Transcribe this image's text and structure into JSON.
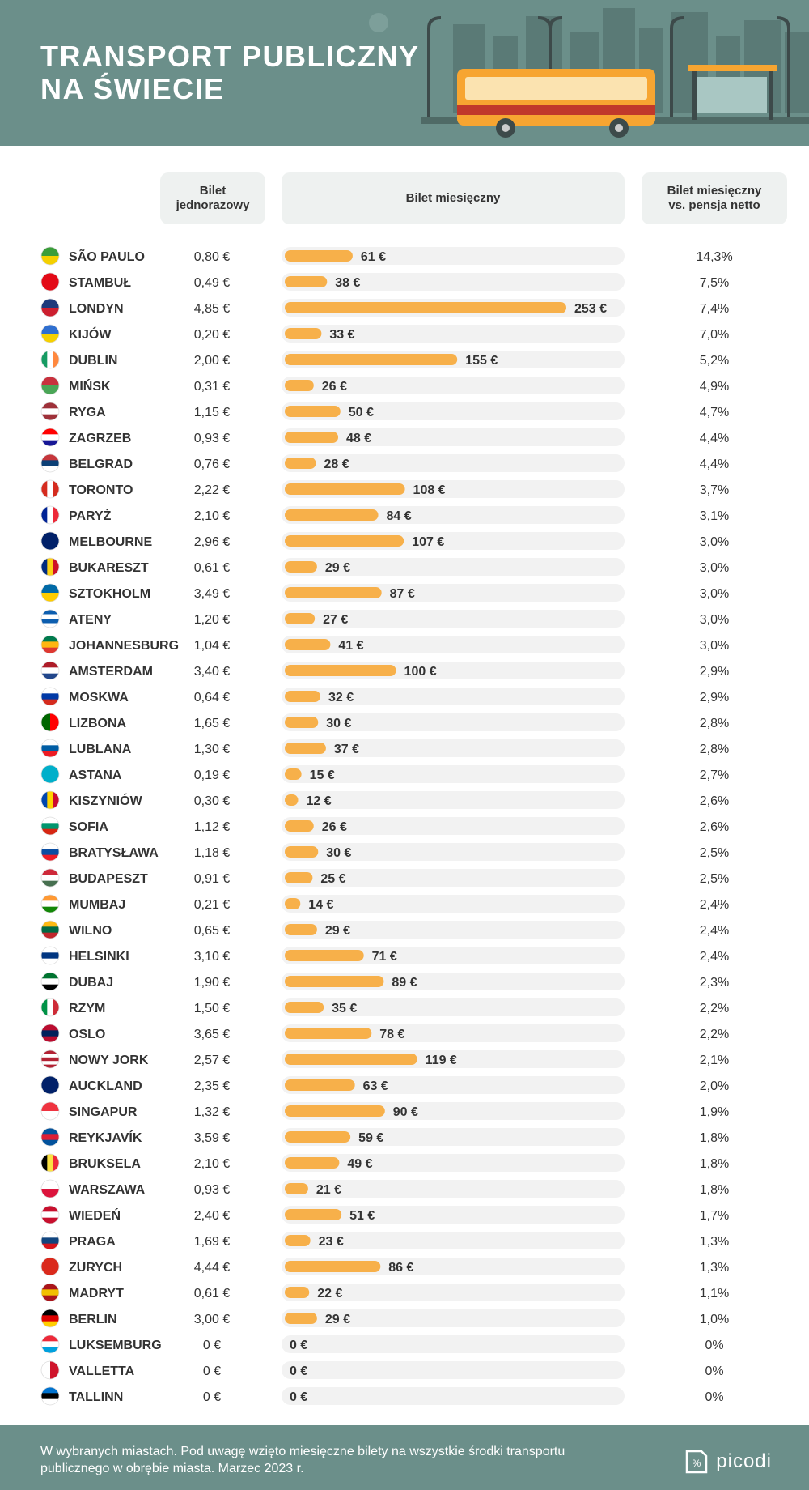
{
  "header": {
    "title_line1": "TRANSPORT PUBLICZNY",
    "title_line2": "NA ŚWIECIE"
  },
  "columns": {
    "single": "Bilet jednorazowy",
    "monthly": "Bilet miesięczny",
    "ratio": "Bilet miesięczny vs. pensja netto"
  },
  "footer": {
    "note": "W wybranych miastach. Pod uwagę wzięto miesięczne bilety na wszystkie środki transportu publicznego w obrębie miasta. Marzec 2023 r.",
    "brand": "picodi"
  },
  "colors": {
    "header_bg": "#6b8f8a",
    "bar": "#f7b04a",
    "track": "#f2f2f2"
  },
  "chart_data": {
    "type": "bar",
    "categories": [
      "SÃO PAULO",
      "STAMBUŁ",
      "LONDYN",
      "KIJÓW",
      "DUBLIN",
      "MIŃSK",
      "RYGA",
      "ZAGRZEB",
      "BELGRAD",
      "TORONTO",
      "PARYŻ",
      "MELBOURNE",
      "BUKARESZT",
      "SZTOKHOLM",
      "ATENY",
      "JOHANNESBURG",
      "AMSTERDAM",
      "MOSKWA",
      "LIZBONA",
      "LUBLANA",
      "ASTANA",
      "KISZYNIÓW",
      "SOFIA",
      "BRATYSŁAWA",
      "BUDAPESZT",
      "MUMBAJ",
      "WILNO",
      "HELSINKI",
      "DUBAJ",
      "RZYM",
      "OSLO",
      "NOWY JORK",
      "AUCKLAND",
      "SINGAPUR",
      "REYKJAVÍK",
      "BRUKSELA",
      "WARSZAWA",
      "WIEDEŃ",
      "PRAGA",
      "ZURYCH",
      "MADRYT",
      "BERLIN",
      "LUKSEMBURG",
      "VALLETTA",
      "TALLINN"
    ],
    "single_labels": [
      "0,80 €",
      "0,49 €",
      "4,85 €",
      "0,20 €",
      "2,00 €",
      "0,31 €",
      "1,15 €",
      "0,93 €",
      "0,76 €",
      "2,22 €",
      "2,10 €",
      "2,96 €",
      "0,61 €",
      "3,49 €",
      "1,20 €",
      "1,04 €",
      "3,40 €",
      "0,64 €",
      "1,65 €",
      "1,30 €",
      "0,19 €",
      "0,30 €",
      "1,12 €",
      "1,18 €",
      "0,91 €",
      "0,21 €",
      "0,65 €",
      "3,10 €",
      "1,90 €",
      "1,50 €",
      "3,65 €",
      "2,57 €",
      "2,35 €",
      "1,32 €",
      "3,59 €",
      "2,10 €",
      "0,93 €",
      "2,40 €",
      "1,69 €",
      "4,44 €",
      "0,61 €",
      "3,00 €",
      "0 €",
      "0 €",
      "0 €"
    ],
    "values": [
      61,
      38,
      253,
      33,
      155,
      26,
      50,
      48,
      28,
      108,
      84,
      107,
      29,
      87,
      27,
      41,
      100,
      32,
      30,
      37,
      15,
      12,
      26,
      30,
      25,
      14,
      29,
      71,
      89,
      35,
      78,
      119,
      63,
      90,
      59,
      49,
      21,
      51,
      23,
      86,
      22,
      29,
      0,
      0,
      0
    ],
    "value_labels": [
      "61 €",
      "38 €",
      "253 €",
      "33 €",
      "155 €",
      "26 €",
      "50 €",
      "48 €",
      "28 €",
      "108 €",
      "84 €",
      "107 €",
      "29 €",
      "87 €",
      "27 €",
      "41 €",
      "100 €",
      "32 €",
      "30 €",
      "37 €",
      "15 €",
      "12 €",
      "26 €",
      "30 €",
      "25 €",
      "14 €",
      "29 €",
      "71 €",
      "89 €",
      "35 €",
      "78 €",
      "119 €",
      "63 €",
      "90 €",
      "59 €",
      "49 €",
      "21 €",
      "51 €",
      "23 €",
      "86 €",
      "22 €",
      "29 €",
      "0 €",
      "0 €",
      "0 €"
    ],
    "ratio_labels": [
      "14,3%",
      "7,5%",
      "7,4%",
      "7,0%",
      "5,2%",
      "4,9%",
      "4,7%",
      "4,4%",
      "4,4%",
      "3,7%",
      "3,1%",
      "3,0%",
      "3,0%",
      "3,0%",
      "3,0%",
      "3,0%",
      "2,9%",
      "2,9%",
      "2,8%",
      "2,8%",
      "2,7%",
      "2,6%",
      "2,6%",
      "2,5%",
      "2,5%",
      "2,4%",
      "2,4%",
      "2,4%",
      "2,3%",
      "2,2%",
      "2,2%",
      "2,1%",
      "2,0%",
      "1,9%",
      "1,8%",
      "1,8%",
      "1,8%",
      "1,7%",
      "1,3%",
      "1,3%",
      "1,1%",
      "1,0%",
      "0%",
      "0%",
      "0%"
    ],
    "flags": [
      {
        "colors": [
          "#3a9d3a",
          "#f4d000"
        ]
      },
      {
        "colors": [
          "#e30a17",
          "#e30a17"
        ]
      },
      {
        "colors": [
          "#1e3a7b",
          "#cc1f2f"
        ]
      },
      {
        "colors": [
          "#2f6fd0",
          "#f6d000"
        ]
      },
      {
        "colors": [
          "#169b62",
          "#ffffff",
          "#ff883e"
        ],
        "dir": "v"
      },
      {
        "colors": [
          "#c8313e",
          "#4aa657"
        ]
      },
      {
        "colors": [
          "#9e3039",
          "#ffffff",
          "#9e3039"
        ]
      },
      {
        "colors": [
          "#ff0000",
          "#ffffff",
          "#171796"
        ]
      },
      {
        "colors": [
          "#c6363c",
          "#0c4076",
          "#ffffff"
        ]
      },
      {
        "colors": [
          "#d52b1e",
          "#ffffff",
          "#d52b1e"
        ],
        "dir": "v"
      },
      {
        "colors": [
          "#002395",
          "#ffffff",
          "#ed2939"
        ],
        "dir": "v"
      },
      {
        "colors": [
          "#012169",
          "#012169"
        ]
      },
      {
        "colors": [
          "#002b7f",
          "#fcd116",
          "#ce1126"
        ],
        "dir": "v"
      },
      {
        "colors": [
          "#006aa7",
          "#fecc00"
        ]
      },
      {
        "colors": [
          "#0d5eaf",
          "#ffffff",
          "#0d5eaf",
          "#ffffff"
        ]
      },
      {
        "colors": [
          "#007a4d",
          "#ffb612",
          "#de3831"
        ]
      },
      {
        "colors": [
          "#ae1c28",
          "#ffffff",
          "#21468b"
        ]
      },
      {
        "colors": [
          "#ffffff",
          "#0039a6",
          "#d52b1e"
        ]
      },
      {
        "colors": [
          "#006600",
          "#ff0000"
        ],
        "dir": "v"
      },
      {
        "colors": [
          "#ffffff",
          "#005da4",
          "#ed1c24"
        ]
      },
      {
        "colors": [
          "#00afca",
          "#00afca"
        ]
      },
      {
        "colors": [
          "#0046ae",
          "#ffd200",
          "#cc092f"
        ],
        "dir": "v"
      },
      {
        "colors": [
          "#ffffff",
          "#00966e",
          "#d62612"
        ]
      },
      {
        "colors": [
          "#ffffff",
          "#0b4ea2",
          "#ee1c25"
        ]
      },
      {
        "colors": [
          "#ce2939",
          "#ffffff",
          "#477050"
        ]
      },
      {
        "colors": [
          "#ff9933",
          "#ffffff",
          "#138808"
        ]
      },
      {
        "colors": [
          "#fdb913",
          "#006a44",
          "#c1272d"
        ]
      },
      {
        "colors": [
          "#ffffff",
          "#003580",
          "#ffffff"
        ]
      },
      {
        "colors": [
          "#00732f",
          "#ffffff",
          "#000000"
        ]
      },
      {
        "colors": [
          "#009246",
          "#ffffff",
          "#ce2b37"
        ],
        "dir": "v"
      },
      {
        "colors": [
          "#ba0c2f",
          "#00205b",
          "#ba0c2f"
        ]
      },
      {
        "colors": [
          "#b22234",
          "#ffffff",
          "#b22234",
          "#ffffff",
          "#b22234"
        ]
      },
      {
        "colors": [
          "#012169",
          "#012169"
        ]
      },
      {
        "colors": [
          "#ef3340",
          "#ffffff"
        ]
      },
      {
        "colors": [
          "#02529c",
          "#dc1e35",
          "#02529c"
        ]
      },
      {
        "colors": [
          "#000000",
          "#fae042",
          "#ed2939"
        ],
        "dir": "v"
      },
      {
        "colors": [
          "#ffffff",
          "#dc143c"
        ]
      },
      {
        "colors": [
          "#c8102e",
          "#ffffff",
          "#c8102e"
        ]
      },
      {
        "colors": [
          "#ffffff",
          "#11457e",
          "#d7141a"
        ]
      },
      {
        "colors": [
          "#da291c",
          "#da291c"
        ]
      },
      {
        "colors": [
          "#aa151b",
          "#f1bf00",
          "#aa151b"
        ]
      },
      {
        "colors": [
          "#000000",
          "#dd0000",
          "#ffce00"
        ]
      },
      {
        "colors": [
          "#ed2939",
          "#ffffff",
          "#00a1de"
        ]
      },
      {
        "colors": [
          "#ffffff",
          "#cf142b"
        ],
        "dir": "v"
      },
      {
        "colors": [
          "#0072ce",
          "#000000",
          "#ffffff"
        ]
      }
    ],
    "xlim": [
      0,
      253
    ]
  }
}
